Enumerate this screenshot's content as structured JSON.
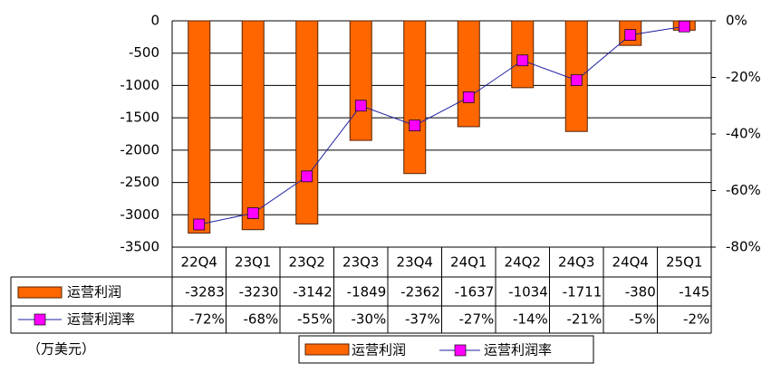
{
  "chart_data": {
    "type": "bar_line",
    "unit_label": "（万美元）",
    "categories": [
      "22Q4",
      "23Q1",
      "23Q2",
      "23Q3",
      "23Q4",
      "24Q1",
      "24Q2",
      "24Q3",
      "24Q4",
      "25Q1"
    ],
    "series": [
      {
        "name": "运营利润",
        "type": "bar",
        "color": "#FF6600",
        "values": [
          -3283,
          -3230,
          -3142,
          -1849,
          -2362,
          -1637,
          -1034,
          -1711,
          -380,
          -145
        ]
      },
      {
        "name": "运营利润率",
        "type": "line",
        "axis": "y2",
        "color": "#2020A0",
        "marker_color": "#FF00FF",
        "values": [
          -72,
          -68,
          -55,
          -30,
          -37,
          -27,
          -14,
          -21,
          -5,
          -2
        ],
        "value_labels": [
          "-72%",
          "-68%",
          "-55%",
          "-30%",
          "-37%",
          "-27%",
          "-14%",
          "-21%",
          "-5%",
          "-2%"
        ]
      }
    ],
    "ylim": [
      -3500,
      0
    ],
    "yticks": [
      0,
      -500,
      -1000,
      -1500,
      -2000,
      -2500,
      -3000,
      -3500
    ],
    "y2lim": [
      -80,
      0
    ],
    "y2ticks": [
      {
        "value": 0,
        "label": "0%"
      },
      {
        "value": -20,
        "label": "-20%"
      },
      {
        "value": -40,
        "label": "-40%"
      },
      {
        "value": -60,
        "label": "-60%"
      },
      {
        "value": -80,
        "label": "-80%"
      }
    ],
    "grid": true
  }
}
